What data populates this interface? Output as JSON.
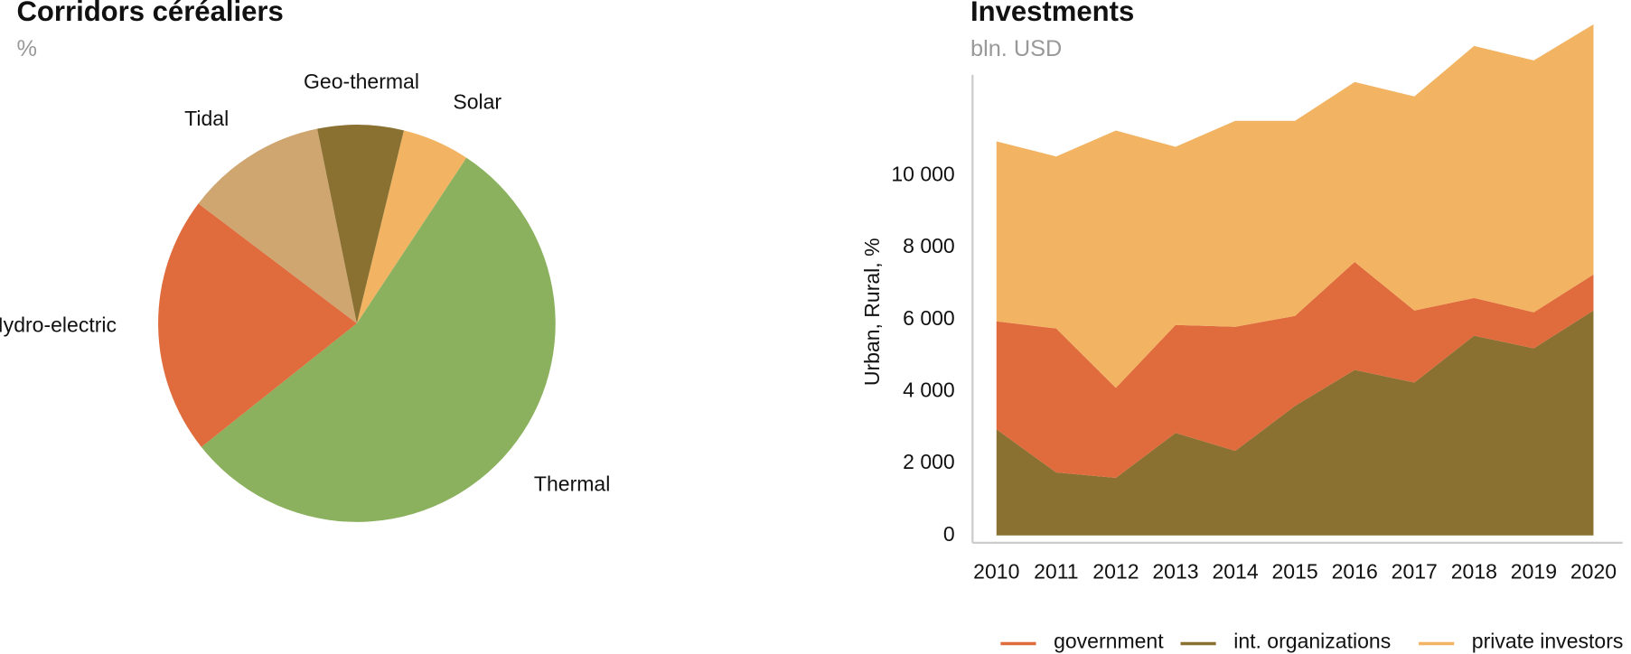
{
  "chart_data": [
    {
      "type": "pie",
      "title": "Corridors céréaliers",
      "subtitle": "%",
      "categories": [
        "Solar",
        "Thermal",
        "Hydro-electric",
        "Tidal",
        "Geo-thermal"
      ],
      "values": [
        5.5,
        55,
        21,
        11.5,
        7
      ],
      "colors": [
        "#f2b463",
        "#8bb15f",
        "#e06b3d",
        "#cfa570",
        "#8a7132"
      ]
    },
    {
      "type": "area",
      "title": "Investments",
      "subtitle": "bln. USD",
      "y_label": "Urban, Rural, %",
      "categories": [
        "2010",
        "2011",
        "2012",
        "2013",
        "2014",
        "2015",
        "2016",
        "2017",
        "2018",
        "2019",
        "2020"
      ],
      "series": [
        {
          "name": "government",
          "color": "#e06b3d",
          "values": [
            3000,
            4000,
            2500,
            3000,
            3450,
            2500,
            3000,
            2000,
            1050,
            1000,
            1000
          ]
        },
        {
          "name": "int. organizations",
          "color": "#8a7132",
          "values": [
            2950,
            1750,
            1600,
            2850,
            2350,
            3600,
            4600,
            4250,
            5550,
            5200,
            6250
          ]
        },
        {
          "name": "private investors",
          "color": "#f2b463",
          "values": [
            5000,
            4780,
            7150,
            4950,
            5720,
            5420,
            5000,
            5950,
            7000,
            7000,
            6950
          ]
        }
      ],
      "stack_order": [
        1,
        0,
        2
      ],
      "ylim": [
        0,
        14300
      ],
      "yticks": [
        0,
        {
          "value": 2000,
          "label": "2 000"
        },
        {
          "value": 4000,
          "label": "4 000"
        },
        {
          "value": 6000,
          "label": "6 000"
        },
        {
          "value": 8000,
          "label": "8 000"
        },
        {
          "value": 10000,
          "label": "10 000"
        }
      ]
    }
  ]
}
